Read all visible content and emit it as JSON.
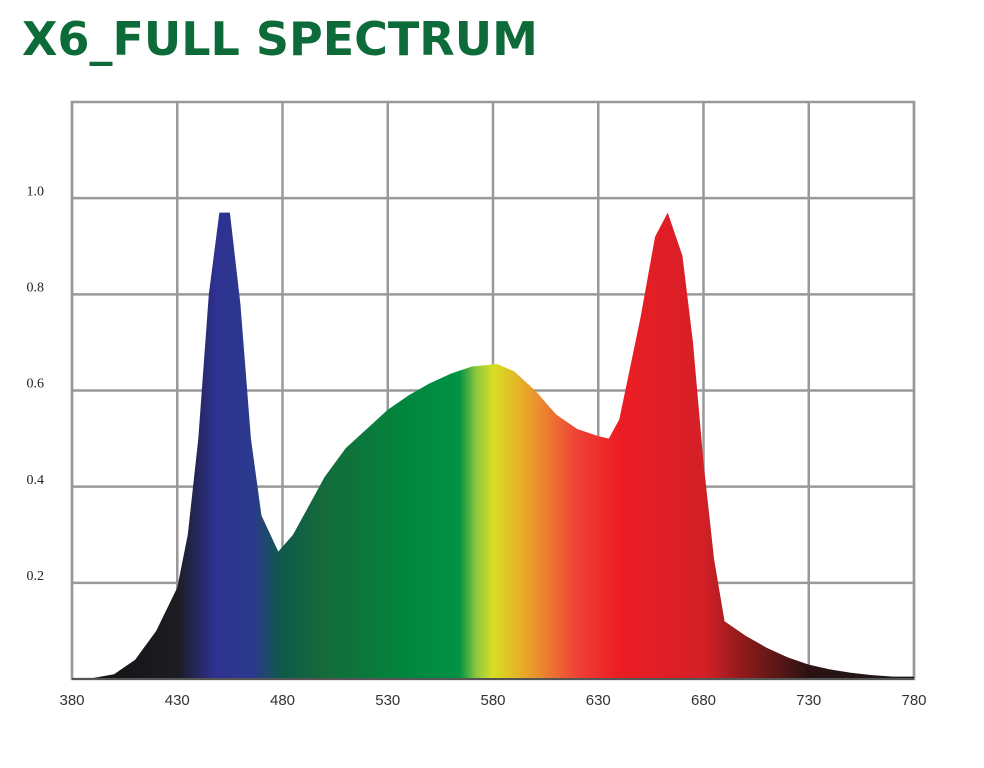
{
  "chart_data": {
    "type": "area",
    "title": "X6_FULL SPECTRUM",
    "x": [
      380,
      390,
      400,
      410,
      420,
      430,
      435,
      440,
      445,
      450,
      455,
      460,
      465,
      470,
      478,
      485,
      490,
      500,
      510,
      520,
      530,
      540,
      550,
      560,
      570,
      582,
      590,
      600,
      610,
      620,
      630,
      635,
      640,
      650,
      657,
      663,
      670,
      675,
      680,
      685,
      690,
      700,
      710,
      720,
      730,
      740,
      750,
      760,
      770,
      780
    ],
    "values": [
      0,
      0.002,
      0.01,
      0.04,
      0.1,
      0.19,
      0.3,
      0.5,
      0.8,
      0.97,
      0.97,
      0.78,
      0.5,
      0.34,
      0.265,
      0.3,
      0.34,
      0.42,
      0.48,
      0.52,
      0.56,
      0.59,
      0.615,
      0.635,
      0.65,
      0.655,
      0.64,
      0.6,
      0.55,
      0.52,
      0.505,
      0.5,
      0.54,
      0.75,
      0.92,
      0.97,
      0.88,
      0.7,
      0.45,
      0.25,
      0.12,
      0.09,
      0.065,
      0.045,
      0.03,
      0.02,
      0.013,
      0.008,
      0.005,
      0.005
    ],
    "xlim": [
      380,
      780
    ],
    "xticks": [
      380,
      430,
      480,
      530,
      580,
      630,
      680,
      730,
      780
    ],
    "ylim": [
      0,
      1.2
    ],
    "yticks": [
      {
        "value": 0.2,
        "label": "0.2"
      },
      {
        "value": 0.4,
        "label": "0.4"
      },
      {
        "value": 0.6,
        "label": "0.6"
      },
      {
        "value": 0.8,
        "label": "0.8"
      },
      {
        "value": 1.0,
        "label": "1.0"
      }
    ],
    "grid": true
  }
}
